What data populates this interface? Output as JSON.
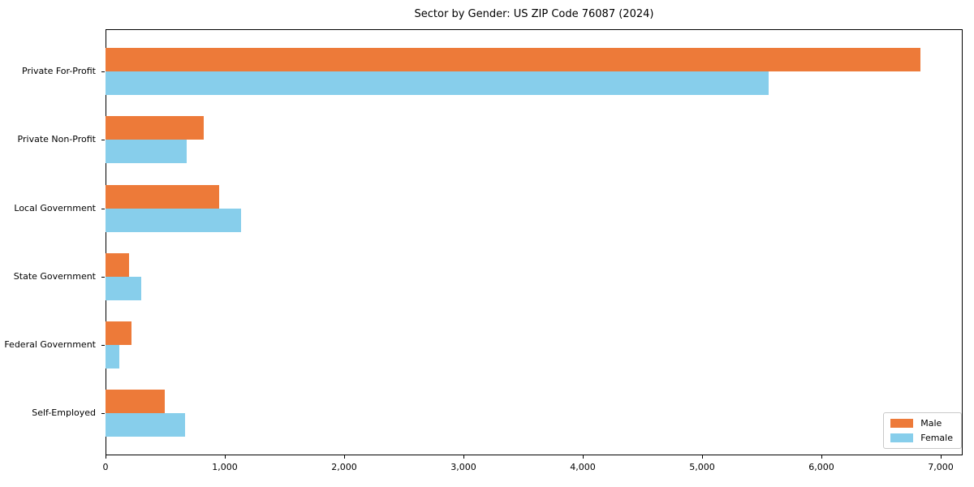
{
  "chart_data": {
    "type": "bar",
    "orientation": "horizontal",
    "title": "Sector by Gender: US ZIP Code 76087 (2024)",
    "categories": [
      "Private For-Profit",
      "Private Non-Profit",
      "Local Government",
      "State Government",
      "Federal Government",
      "Self-Employed"
    ],
    "series": [
      {
        "name": "Male",
        "color": "#ED7A39",
        "values": [
          6830,
          820,
          950,
          195,
          215,
          500
        ]
      },
      {
        "name": "Female",
        "color": "#87CEEB",
        "values": [
          5560,
          680,
          1135,
          300,
          115,
          670
        ]
      }
    ],
    "xlabel": "",
    "ylabel": "",
    "xlim": [
      0,
      7185
    ],
    "xticks": [
      0,
      1000,
      2000,
      3000,
      4000,
      5000,
      6000,
      7000
    ],
    "xtick_labels": [
      "0",
      "1,000",
      "2,000",
      "3,000",
      "4,000",
      "5,000",
      "6,000",
      "7,000"
    ],
    "grid": false,
    "legend": {
      "position": "lower right",
      "entries": [
        {
          "label": "Male",
          "color": "#ED7A39"
        },
        {
          "label": "Female",
          "color": "#87CEEB"
        }
      ]
    }
  }
}
